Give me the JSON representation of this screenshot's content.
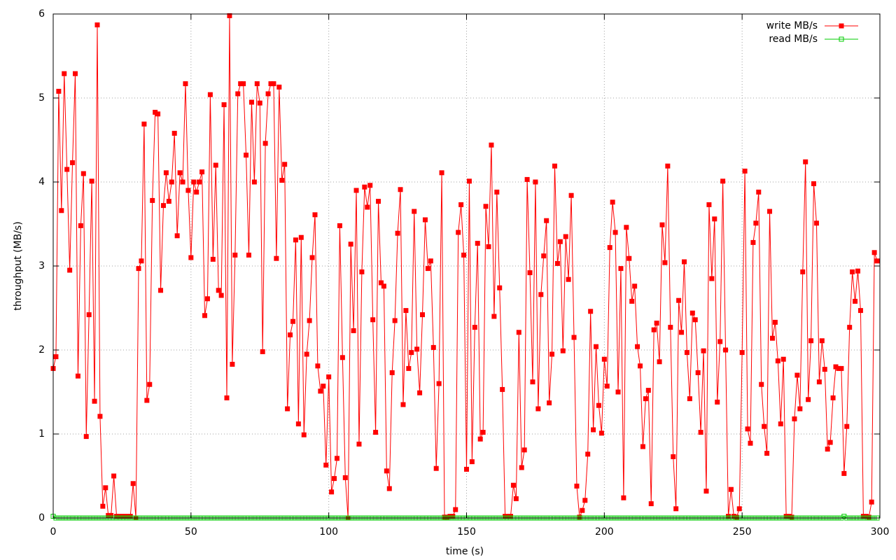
{
  "chart_data": {
    "type": "line",
    "xlabel": "time (s)",
    "ylabel": "throughput (MB/s)",
    "xlim": [
      0,
      300
    ],
    "ylim": [
      0,
      6
    ],
    "xticks": [
      0,
      50,
      100,
      150,
      200,
      250,
      300
    ],
    "yticks": [
      0,
      1,
      2,
      3,
      4,
      5,
      6
    ],
    "grid": true,
    "legend": "top-right",
    "x": [
      0,
      1,
      2,
      3,
      4,
      5,
      6,
      7,
      8,
      9,
      10,
      11,
      12,
      13,
      14,
      15,
      16,
      17,
      18,
      19,
      20,
      21,
      22,
      23,
      24,
      25,
      26,
      27,
      28,
      29,
      30,
      31,
      32,
      33,
      34,
      35,
      36,
      37,
      38,
      39,
      40,
      41,
      42,
      43,
      44,
      45,
      46,
      47,
      48,
      49,
      50,
      51,
      52,
      53,
      54,
      55,
      56,
      57,
      58,
      59,
      60,
      61,
      62,
      63,
      64,
      65,
      66,
      67,
      68,
      69,
      70,
      71,
      72,
      73,
      74,
      75,
      76,
      77,
      78,
      79,
      80,
      81,
      82,
      83,
      84,
      85,
      86,
      87,
      88,
      89,
      90,
      91,
      92,
      93,
      94,
      95,
      96,
      97,
      98,
      99,
      100,
      101,
      102,
      103,
      104,
      105,
      106,
      107,
      108,
      109,
      110,
      111,
      112,
      113,
      114,
      115,
      116,
      117,
      118,
      119,
      120,
      121,
      122,
      123,
      124,
      125,
      126,
      127,
      128,
      129,
      130,
      131,
      132,
      133,
      134,
      135,
      136,
      137,
      138,
      139,
      140,
      141,
      142,
      143,
      144,
      145,
      146,
      147,
      148,
      149,
      150,
      151,
      152,
      153,
      154,
      155,
      156,
      157,
      158,
      159,
      160,
      161,
      162,
      163,
      164,
      165,
      166,
      167,
      168,
      169,
      170,
      171,
      172,
      173,
      174,
      175,
      176,
      177,
      178,
      179,
      180,
      181,
      182,
      183,
      184,
      185,
      186,
      187,
      188,
      189,
      190,
      191,
      192,
      193,
      194,
      195,
      196,
      197,
      198,
      199,
      200,
      201,
      202,
      203,
      204,
      205,
      206,
      207,
      208,
      209,
      210,
      211,
      212,
      213,
      214,
      215,
      216,
      217,
      218,
      219,
      220,
      221,
      222,
      223,
      224,
      225,
      226,
      227,
      228,
      229,
      230,
      231,
      232,
      233,
      234,
      235,
      236,
      237,
      238,
      239,
      240,
      241,
      242,
      243,
      244,
      245,
      246,
      247,
      248,
      249,
      250,
      251,
      252,
      253,
      254,
      255,
      256,
      257,
      258,
      259,
      260,
      261,
      262,
      263,
      264,
      265,
      266,
      267,
      268,
      269,
      270,
      271,
      272,
      273,
      274,
      275,
      276,
      277,
      278,
      279,
      280,
      281,
      282,
      283,
      284,
      285,
      286,
      287,
      288,
      289,
      290,
      291,
      292,
      293,
      294,
      295,
      296,
      297,
      298,
      299
    ],
    "series": [
      {
        "name": "write MB/s",
        "color": "#ff0000",
        "marker": "filled-square",
        "values": [
          1.78,
          1.92,
          5.08,
          3.66,
          5.29,
          4.15,
          2.95,
          4.23,
          5.29,
          1.69,
          3.48,
          4.1,
          0.97,
          2.42,
          4.01,
          1.39,
          5.87,
          1.21,
          0.14,
          0.36,
          0.03,
          0.03,
          0.5,
          0.02,
          0.02,
          0.02,
          0.02,
          0.02,
          0.02,
          0.41,
          0.0,
          2.97,
          3.06,
          4.69,
          1.4,
          1.59,
          3.78,
          4.83,
          4.81,
          2.71,
          3.72,
          4.11,
          3.77,
          4.0,
          4.58,
          3.36,
          4.11,
          4.0,
          5.17,
          3.9,
          3.1,
          4.0,
          3.88,
          4.0,
          4.12,
          2.41,
          2.61,
          5.04,
          3.08,
          4.2,
          2.71,
          2.65,
          4.92,
          1.43,
          5.98,
          1.83,
          3.13,
          5.05,
          5.17,
          5.17,
          4.32,
          3.13,
          4.95,
          4.0,
          5.17,
          4.94,
          1.98,
          4.46,
          5.05,
          5.17,
          5.17,
          3.09,
          5.13,
          4.02,
          4.21,
          1.3,
          2.18,
          2.34,
          3.31,
          1.12,
          3.34,
          0.99,
          1.95,
          2.35,
          3.1,
          3.61,
          1.81,
          1.51,
          1.57,
          0.63,
          1.68,
          0.31,
          0.47,
          0.71,
          3.48,
          1.91,
          0.48,
          0.0,
          3.26,
          2.23,
          3.9,
          0.88,
          2.93,
          3.94,
          3.7,
          3.96,
          2.36,
          1.02,
          3.77,
          2.8,
          2.76,
          0.56,
          0.35,
          1.73,
          2.35,
          3.39,
          3.91,
          1.35,
          2.47,
          1.78,
          1.97,
          3.65,
          2.01,
          1.49,
          2.42,
          3.55,
          2.97,
          3.06,
          2.03,
          0.59,
          1.6,
          4.11,
          0.01,
          0.01,
          0.02,
          0.02,
          0.1,
          3.4,
          3.73,
          3.13,
          0.58,
          4.01,
          0.67,
          2.27,
          3.27,
          0.94,
          1.02,
          3.71,
          3.23,
          4.44,
          2.4,
          3.88,
          2.74,
          1.53,
          0.02,
          0.02,
          0.02,
          0.39,
          0.23,
          2.21,
          0.6,
          0.81,
          4.03,
          2.92,
          1.62,
          4.0,
          1.3,
          2.66,
          3.12,
          3.54,
          1.37,
          1.95,
          4.19,
          3.03,
          3.29,
          1.99,
          3.35,
          2.84,
          3.84,
          2.15,
          0.38,
          0.01,
          0.09,
          0.21,
          0.76,
          2.46,
          1.05,
          2.04,
          1.34,
          1.01,
          1.89,
          1.57,
          3.22,
          3.76,
          3.4,
          1.5,
          2.97,
          0.24,
          3.46,
          3.09,
          2.58,
          2.76,
          2.04,
          1.81,
          0.85,
          1.42,
          1.52,
          0.17,
          2.24,
          2.32,
          1.86,
          3.49,
          3.04,
          4.19,
          2.27,
          0.73,
          0.11,
          2.59,
          2.21,
          3.05,
          1.97,
          1.42,
          2.44,
          2.36,
          1.73,
          1.02,
          1.99,
          0.32,
          3.73,
          2.85,
          3.56,
          1.38,
          2.1,
          4.01,
          2.0,
          0.02,
          0.34,
          0.02,
          0.01,
          0.11,
          1.97,
          4.13,
          1.06,
          0.89,
          3.28,
          3.51,
          3.88,
          1.59,
          1.09,
          0.77,
          3.65,
          2.14,
          2.33,
          1.87,
          1.12,
          1.89,
          0.02,
          0.02,
          0.01,
          1.18,
          1.7,
          1.3,
          2.93,
          4.24,
          1.41,
          2.11,
          3.98,
          3.51,
          1.62,
          2.11,
          1.77,
          0.82,
          0.9,
          1.43,
          1.8,
          1.78,
          1.78,
          0.53,
          1.09,
          2.27,
          2.93,
          2.58,
          2.94,
          2.47,
          0.02,
          0.02,
          0.01,
          0.19,
          3.16,
          3.06
        ]
      },
      {
        "name": "read MB/s",
        "color": "#00cc00",
        "marker": "open-square",
        "values": [
          0.02,
          0,
          0,
          0,
          0,
          0,
          0,
          0,
          0,
          0,
          0,
          0,
          0,
          0,
          0,
          0,
          0,
          0,
          0,
          0,
          0,
          0,
          0,
          0,
          0,
          0,
          0,
          0,
          0,
          0,
          0,
          0,
          0,
          0,
          0,
          0,
          0,
          0,
          0,
          0,
          0,
          0,
          0,
          0,
          0,
          0,
          0,
          0,
          0,
          0,
          0,
          0,
          0,
          0,
          0,
          0,
          0,
          0,
          0,
          0,
          0,
          0,
          0,
          0,
          0,
          0,
          0,
          0,
          0,
          0,
          0,
          0,
          0,
          0,
          0,
          0,
          0,
          0,
          0,
          0,
          0,
          0,
          0,
          0,
          0,
          0,
          0,
          0,
          0,
          0,
          0,
          0,
          0,
          0,
          0,
          0,
          0,
          0,
          0,
          0,
          0,
          0,
          0,
          0,
          0,
          0,
          0,
          0,
          0,
          0,
          0,
          0,
          0,
          0,
          0,
          0,
          0,
          0,
          0,
          0,
          0,
          0,
          0,
          0,
          0,
          0,
          0,
          0,
          0,
          0,
          0,
          0,
          0,
          0,
          0,
          0,
          0,
          0,
          0,
          0,
          0,
          0,
          0,
          0,
          0,
          0,
          0,
          0,
          0,
          0,
          0,
          0,
          0,
          0,
          0,
          0,
          0,
          0,
          0,
          0,
          0,
          0,
          0,
          0,
          0,
          0,
          0,
          0,
          0,
          0,
          0,
          0,
          0,
          0,
          0,
          0,
          0,
          0,
          0,
          0,
          0,
          0,
          0,
          0,
          0,
          0,
          0,
          0,
          0,
          0,
          0,
          0,
          0,
          0,
          0,
          0,
          0,
          0,
          0,
          0,
          0,
          0,
          0,
          0,
          0,
          0,
          0,
          0,
          0,
          0,
          0,
          0,
          0,
          0,
          0,
          0,
          0,
          0,
          0,
          0,
          0,
          0,
          0,
          0,
          0,
          0,
          0,
          0,
          0,
          0,
          0,
          0,
          0,
          0,
          0,
          0,
          0,
          0,
          0,
          0,
          0,
          0,
          0,
          0,
          0,
          0,
          0,
          0,
          0,
          0,
          0,
          0,
          0,
          0,
          0,
          0,
          0,
          0,
          0,
          0,
          0,
          0,
          0,
          0,
          0,
          0,
          0,
          0,
          0,
          0,
          0,
          0,
          0,
          0,
          0,
          0,
          0,
          0,
          0,
          0,
          0,
          0,
          0,
          0,
          0,
          0,
          0,
          0.02,
          0,
          0,
          0,
          0,
          0,
          0,
          0,
          0,
          0,
          0,
          0,
          0
        ]
      }
    ]
  }
}
